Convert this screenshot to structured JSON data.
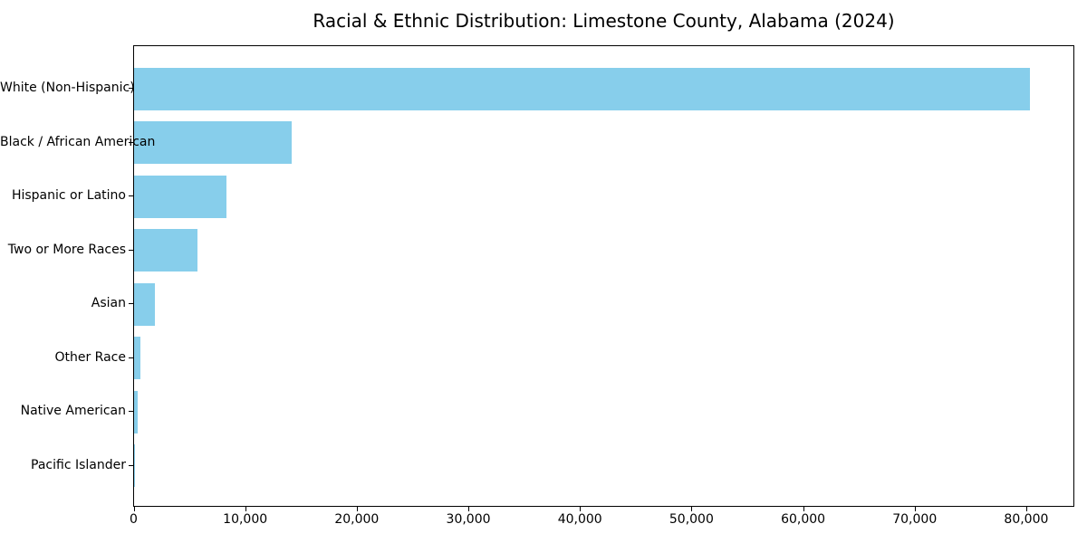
{
  "chart_data": {
    "type": "bar",
    "orientation": "horizontal",
    "title": "Racial & Ethnic Distribution: Limestone County, Alabama (2024)",
    "categories": [
      "White (Non-Hispanic)",
      "Black / African American",
      "Hispanic or Latino",
      "Two or More Races",
      "Asian",
      "Other Race",
      "Native American",
      "Pacific Islander"
    ],
    "values": [
      80300,
      14100,
      8300,
      5700,
      1900,
      600,
      300,
      100
    ],
    "xlabel": "",
    "ylabel": "",
    "xlim": [
      0,
      84350
    ],
    "xticks": {
      "values": [
        0,
        10000,
        20000,
        30000,
        40000,
        50000,
        60000,
        70000,
        80000
      ],
      "labels": [
        "0",
        "10,000",
        "20,000",
        "30,000",
        "40,000",
        "50,000",
        "60,000",
        "70,000",
        "80,000"
      ]
    },
    "bar_color": "#87CEEB",
    "grid": false,
    "legend": null,
    "background_color": "#ffffff",
    "axis_color": "#000000"
  }
}
